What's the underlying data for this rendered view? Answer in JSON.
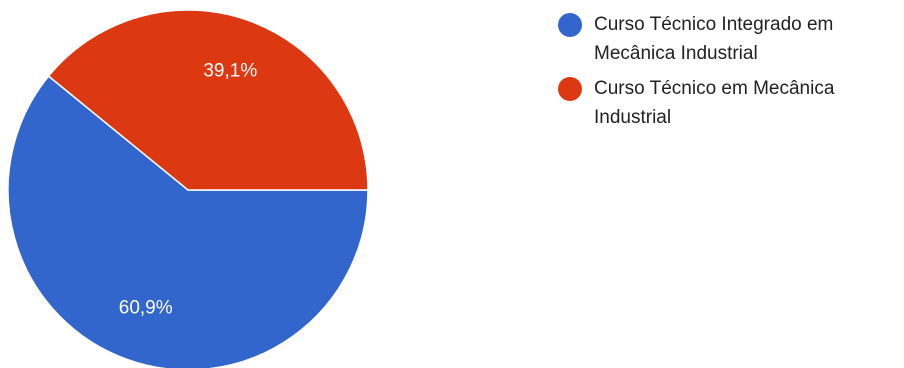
{
  "chart_data": {
    "type": "pie",
    "slices": [
      {
        "label": "Curso Técnico Integrado em Mecânica Industrial",
        "value": 60.9,
        "display": "60,9%",
        "color": "#3366cc"
      },
      {
        "label": "Curso Técnico em Mecânica Industrial",
        "value": 39.1,
        "display": "39,1%",
        "color": "#dc3912"
      }
    ],
    "legend_position": "right"
  }
}
